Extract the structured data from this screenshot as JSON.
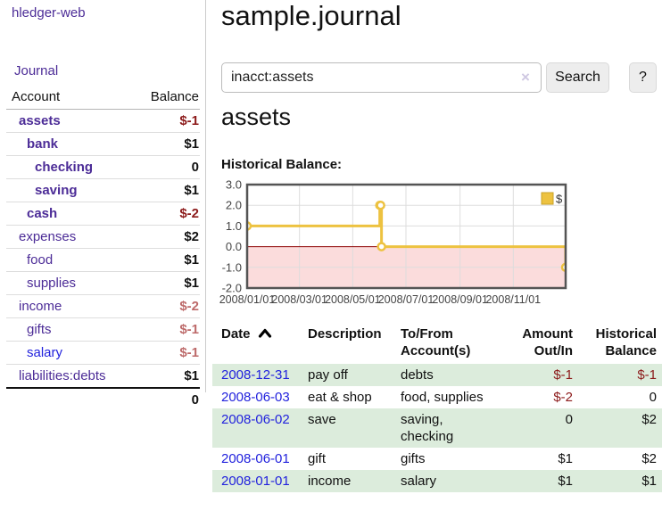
{
  "app": {
    "brand": "hledger-web"
  },
  "header": {
    "title": "sample.journal"
  },
  "search": {
    "value": "inacct:assets",
    "clear_icon": "×",
    "button": "Search",
    "help_button": "?"
  },
  "sidebar": {
    "journal_link": "Journal",
    "accounts_table": {
      "headers": {
        "account": "Account",
        "balance": "Balance"
      },
      "rows": [
        {
          "name": "assets",
          "depth": 0,
          "bold": true,
          "link_style": "purple",
          "balance": "$-1",
          "balance_style": "negative"
        },
        {
          "name": "bank",
          "depth": 1,
          "bold": true,
          "link_style": "purple",
          "balance": "$1",
          "balance_style": ""
        },
        {
          "name": "checking",
          "depth": 2,
          "bold": true,
          "link_style": "purple",
          "balance": "0",
          "balance_style": ""
        },
        {
          "name": "saving",
          "depth": 2,
          "bold": true,
          "link_style": "purple",
          "balance": "$1",
          "balance_style": ""
        },
        {
          "name": "cash",
          "depth": 1,
          "bold": true,
          "link_style": "purple",
          "balance": "$-2",
          "balance_style": "negative"
        },
        {
          "name": "expenses",
          "depth": 0,
          "bold": false,
          "link_style": "purple",
          "balance": "$2",
          "balance_style": ""
        },
        {
          "name": "food",
          "depth": 1,
          "bold": false,
          "link_style": "purple",
          "balance": "$1",
          "balance_style": ""
        },
        {
          "name": "supplies",
          "depth": 1,
          "bold": false,
          "link_style": "purple",
          "balance": "$1",
          "balance_style": ""
        },
        {
          "name": "income",
          "depth": 0,
          "bold": false,
          "link_style": "purple",
          "balance": "$-2",
          "balance_style": "negative-soft"
        },
        {
          "name": "gifts",
          "depth": 1,
          "bold": false,
          "link_style": "purple",
          "balance": "$-1",
          "balance_style": "negative-soft"
        },
        {
          "name": "salary",
          "depth": 1,
          "bold": false,
          "link_style": "blue",
          "balance": "$-1",
          "balance_style": "negative-soft"
        },
        {
          "name": "liabilities:debts",
          "depth": 0,
          "bold": false,
          "link_style": "purple",
          "balance": "$1",
          "balance_style": ""
        }
      ],
      "total": "0"
    }
  },
  "account_page": {
    "title": "assets",
    "chart_label": "Historical Balance:"
  },
  "chart_data": {
    "type": "line",
    "step": true,
    "title": "Historical Balance:",
    "xlabel": "",
    "ylabel": "",
    "grid": true,
    "legend_position": "top-right",
    "xlim": [
      "2008-01-01",
      "2008-12-31"
    ],
    "ylim": [
      -2,
      3
    ],
    "y_ticks": [
      3,
      2,
      1,
      0,
      -1,
      -2
    ],
    "x_ticks": [
      "2008/01/01",
      "2008/03/01",
      "2008/05/01",
      "2008/07/01",
      "2008/09/01",
      "2008/11/01"
    ],
    "series": [
      {
        "name": "$",
        "color": "#edc240",
        "points": [
          [
            "2008-01-01",
            1
          ],
          [
            "2008-06-01",
            2
          ],
          [
            "2008-06-02",
            2
          ],
          [
            "2008-06-03",
            0
          ],
          [
            "2008-12-31",
            -1
          ]
        ]
      }
    ],
    "negative_region_color": "#fbdcdc",
    "zero_line_color": "#8b0000"
  },
  "register": {
    "headers": {
      "date": "Date",
      "description": "Description",
      "accounts": "To/From Account(s)",
      "amount": "Amount Out/In",
      "balance": "Historical Balance"
    },
    "rows": [
      {
        "date": "2008-12-31",
        "description": "pay off",
        "accounts": "debts",
        "amount": "$-1",
        "amount_negative": true,
        "balance": "$-1",
        "balance_negative": true
      },
      {
        "date": "2008-06-03",
        "description": "eat & shop",
        "accounts": "food, supplies",
        "amount": "$-2",
        "amount_negative": true,
        "balance": "0",
        "balance_negative": false
      },
      {
        "date": "2008-06-02",
        "description": "save",
        "accounts": "saving, checking",
        "amount": "0",
        "amount_negative": false,
        "balance": "$2",
        "balance_negative": false
      },
      {
        "date": "2008-06-01",
        "description": "gift",
        "accounts": "gifts",
        "amount": "$1",
        "amount_negative": false,
        "balance": "$2",
        "balance_negative": false
      },
      {
        "date": "2008-01-01",
        "description": "income",
        "accounts": "salary",
        "amount": "$1",
        "amount_negative": false,
        "balance": "$1",
        "balance_negative": false
      }
    ]
  },
  "colors": {
    "link_purple": "#4c2c97",
    "link_blue": "#2222dd",
    "negative": "#8c1a1a",
    "negative_soft": "#bd6a6a",
    "row_stripe_green": "#dcecdc",
    "chart_line_yellow": "#edc240",
    "chart_negative_region": "#fbdcdc",
    "chart_zero_line": "#8b0000",
    "chart_grid": "#dddddd",
    "chart_border": "#545454",
    "tick_label": "#444444"
  }
}
